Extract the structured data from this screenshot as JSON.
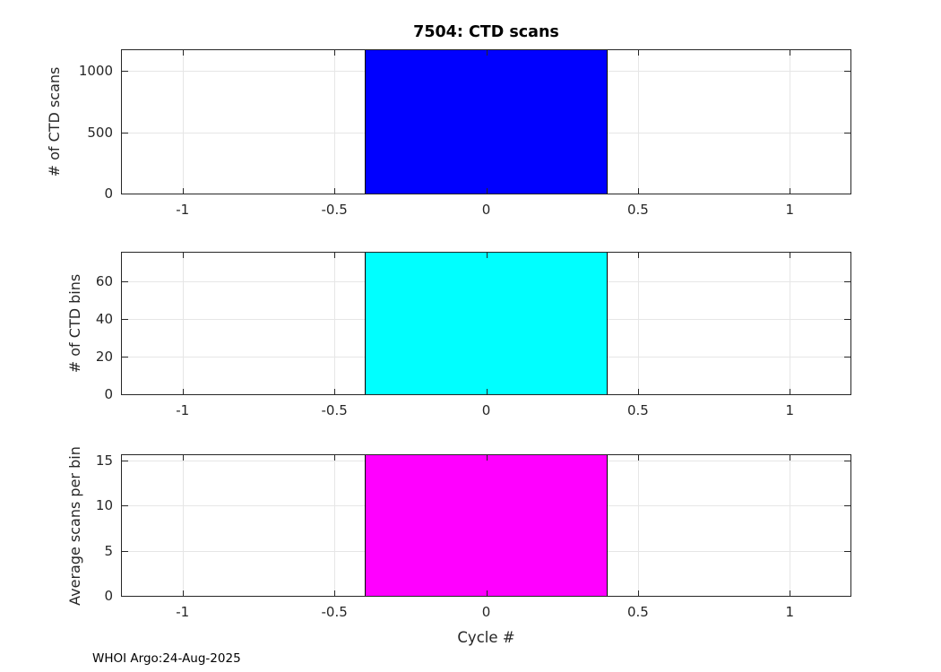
{
  "header": {
    "title": "7504: CTD scans"
  },
  "footer": {
    "credit": "WHOI Argo:24-Aug-2025"
  },
  "colors": {
    "axis": "#262626",
    "grid": "#e6e6e6",
    "background": "#ffffff",
    "bar_blue": "#0000ff",
    "bar_cyan": "#00ffff",
    "bar_magenta": "#ff00ff"
  },
  "chart_data": [
    {
      "type": "bar",
      "title": "7504: CTD scans",
      "xlabel": "",
      "ylabel": "# of CTD scans",
      "x": [
        0
      ],
      "values": [
        1170
      ],
      "bar_width": 0.8,
      "bar_color": "#0000ff",
      "xlim": [
        -1.2,
        1.2
      ],
      "ylim": [
        0,
        1170
      ],
      "xticks": [
        -1,
        -0.5,
        0,
        0.5,
        1
      ],
      "xtick_labels": [
        "-1",
        "-0.5",
        "0",
        "0.5",
        "1"
      ],
      "yticks": [
        0,
        500,
        1000
      ],
      "ytick_labels": [
        "0",
        "500",
        "1000"
      ],
      "grid": true,
      "legend": null
    },
    {
      "type": "bar",
      "title": "",
      "xlabel": "",
      "ylabel": "# of CTD bins",
      "x": [
        0
      ],
      "values": [
        75
      ],
      "bar_width": 0.8,
      "bar_color": "#00ffff",
      "xlim": [
        -1.2,
        1.2
      ],
      "ylim": [
        0,
        75
      ],
      "xticks": [
        -1,
        -0.5,
        0,
        0.5,
        1
      ],
      "xtick_labels": [
        "-1",
        "-0.5",
        "0",
        "0.5",
        "1"
      ],
      "yticks": [
        0,
        20,
        40,
        60
      ],
      "ytick_labels": [
        "0",
        "20",
        "40",
        "60"
      ],
      "grid": true,
      "legend": null
    },
    {
      "type": "bar",
      "title": "",
      "xlabel": "Cycle #",
      "ylabel": "Average scans per bin",
      "x": [
        0
      ],
      "values": [
        15.6
      ],
      "bar_width": 0.8,
      "bar_color": "#ff00ff",
      "xlim": [
        -1.2,
        1.2
      ],
      "ylim": [
        0,
        15.6
      ],
      "xticks": [
        -1,
        -0.5,
        0,
        0.5,
        1
      ],
      "xtick_labels": [
        "-1",
        "-0.5",
        "0",
        "0.5",
        "1"
      ],
      "yticks": [
        0,
        5,
        10,
        15
      ],
      "ytick_labels": [
        "0",
        "5",
        "10",
        "15"
      ],
      "grid": true,
      "legend": null
    }
  ]
}
